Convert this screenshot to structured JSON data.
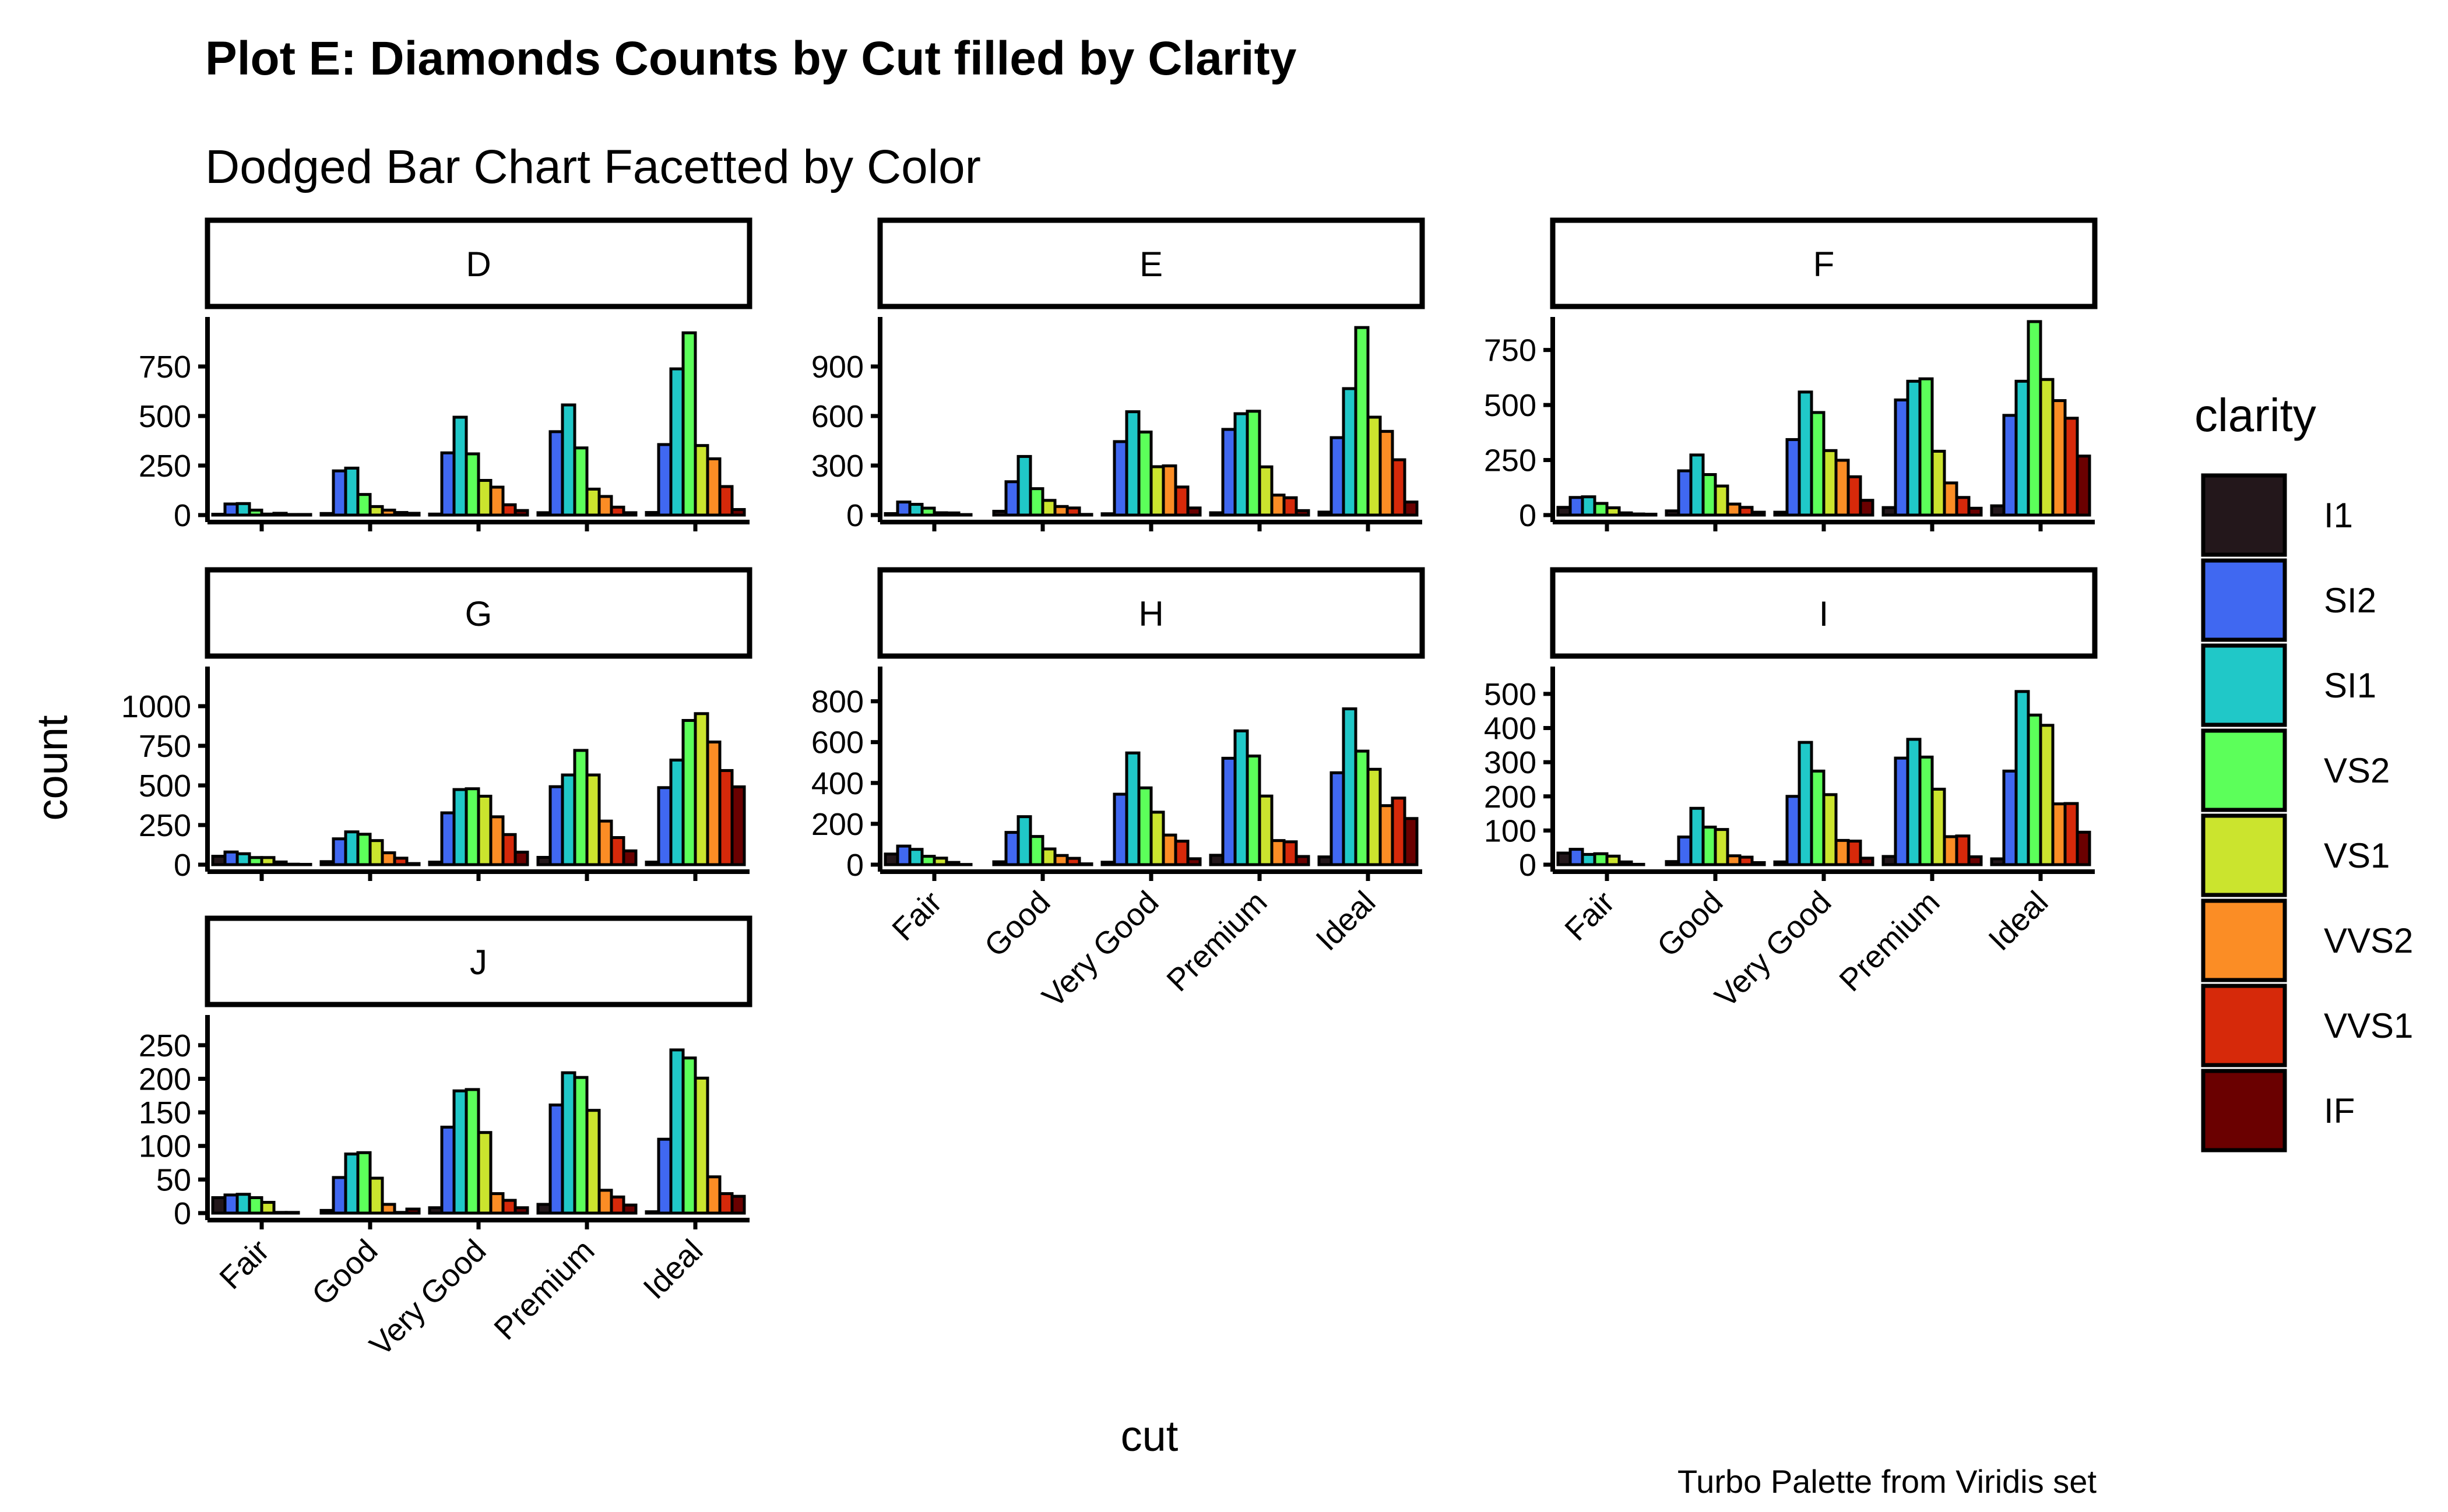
{
  "title": "Plot E: Diamonds Counts by Cut filled by Clarity",
  "subtitle": "Dodged Bar Chart Facetted by Color",
  "caption": "Turbo Palette from Viridis set",
  "chart_data": {
    "type": "bar",
    "layout": "dodged bars, facet_wrap by color, 3 columns, free y scales",
    "xlabel": "cut",
    "ylabel": "count",
    "categories": [
      "Fair",
      "Good",
      "Very Good",
      "Premium",
      "Ideal"
    ],
    "legend": {
      "title": "clarity",
      "position": "right",
      "items": [
        "I1",
        "SI2",
        "SI1",
        "VS2",
        "VS1",
        "VVS2",
        "VVS1",
        "IF"
      ]
    },
    "series_colors": {
      "I1": "#23171b",
      "SI2": "#4068f1",
      "SI1": "#20c8c8",
      "VS2": "#5cff5a",
      "VS1": "#cbe42e",
      "VVS2": "#fb8d25",
      "VVS1": "#d6290a",
      "IF": "#6a0000"
    },
    "grid": false,
    "facets": [
      {
        "label": "D",
        "ylim": [
          0,
          1000
        ],
        "yticks": [
          0,
          250,
          500,
          750
        ],
        "values": [
          [
            4,
            56,
            58,
            25,
            5,
            9,
            3,
            3
          ],
          [
            8,
            223,
            237,
            104,
            43,
            25,
            13,
            9
          ],
          [
            5,
            314,
            494,
            309,
            175,
            141,
            52,
            23
          ],
          [
            12,
            421,
            556,
            339,
            131,
            94,
            40,
            12
          ],
          [
            13,
            356,
            738,
            920,
            351,
            284,
            144,
            28
          ]
        ]
      },
      {
        "label": "E",
        "ylim": [
          0,
          1200
        ],
        "yticks": [
          0,
          300,
          600,
          900
        ],
        "values": [
          [
            9,
            79,
            65,
            42,
            14,
            13,
            3,
            0
          ],
          [
            23,
            202,
            355,
            160,
            89,
            52,
            43,
            4
          ],
          [
            8,
            445,
            626,
            503,
            293,
            298,
            170,
            43
          ],
          [
            14,
            519,
            614,
            629,
            292,
            121,
            105,
            27
          ],
          [
            18,
            469,
            766,
            1136,
            593,
            507,
            335,
            79
          ]
        ]
      },
      {
        "label": "F",
        "ylim": [
          0,
          900
        ],
        "yticks": [
          0,
          250,
          500,
          750
        ],
        "values": [
          [
            35,
            80,
            83,
            53,
            33,
            10,
            5,
            4
          ],
          [
            19,
            201,
            273,
            184,
            132,
            50,
            35,
            13
          ],
          [
            13,
            343,
            559,
            466,
            293,
            249,
            174,
            67
          ],
          [
            34,
            523,
            608,
            619,
            290,
            146,
            80,
            31
          ],
          [
            42,
            453,
            608,
            879,
            616,
            520,
            440,
            268
          ]
        ]
      },
      {
        "label": "G",
        "ylim": [
          0,
          1250
        ],
        "yticks": [
          0,
          250,
          500,
          750,
          1000
        ],
        "values": [
          [
            53,
            80,
            69,
            45,
            45,
            17,
            3,
            2
          ],
          [
            19,
            163,
            207,
            192,
            152,
            75,
            41,
            7
          ],
          [
            16,
            327,
            474,
            479,
            432,
            302,
            190,
            79
          ],
          [
            46,
            492,
            566,
            721,
            566,
            275,
            171,
            87
          ],
          [
            16,
            486,
            660,
            910,
            953,
            774,
            594,
            491
          ]
        ]
      },
      {
        "label": "H",
        "ylim": [
          0,
          970
        ],
        "yticks": [
          0,
          200,
          400,
          600,
          800
        ],
        "values": [
          [
            52,
            91,
            75,
            41,
            32,
            11,
            1,
            0
          ],
          [
            14,
            158,
            235,
            138,
            77,
            45,
            31,
            4
          ],
          [
            12,
            345,
            547,
            376,
            257,
            145,
            115,
            29
          ],
          [
            46,
            521,
            655,
            532,
            336,
            118,
            112,
            40
          ],
          [
            38,
            450,
            763,
            556,
            467,
            289,
            326,
            226
          ]
        ]
      },
      {
        "label": "I",
        "ylim": [
          0,
          580
        ],
        "yticks": [
          0,
          100,
          200,
          300,
          400,
          500
        ],
        "values": [
          [
            34,
            45,
            30,
            32,
            25,
            8,
            1,
            0
          ],
          [
            9,
            81,
            165,
            110,
            103,
            26,
            22,
            6
          ],
          [
            8,
            200,
            358,
            274,
            205,
            71,
            69,
            19
          ],
          [
            24,
            312,
            367,
            315,
            221,
            82,
            84,
            23
          ],
          [
            17,
            274,
            507,
            438,
            408,
            178,
            179,
            95
          ]
        ]
      },
      {
        "label": "J",
        "ylim": [
          0,
          295
        ],
        "yticks": [
          0,
          50,
          100,
          150,
          200,
          250
        ],
        "values": [
          [
            23,
            27,
            28,
            23,
            16,
            1,
            1,
            0
          ],
          [
            4,
            53,
            88,
            90,
            52,
            13,
            1,
            6
          ],
          [
            8,
            128,
            182,
            184,
            120,
            29,
            19,
            8
          ],
          [
            13,
            161,
            209,
            202,
            153,
            34,
            24,
            12
          ],
          [
            2,
            110,
            243,
            231,
            201,
            54,
            29,
            25
          ]
        ]
      }
    ]
  }
}
